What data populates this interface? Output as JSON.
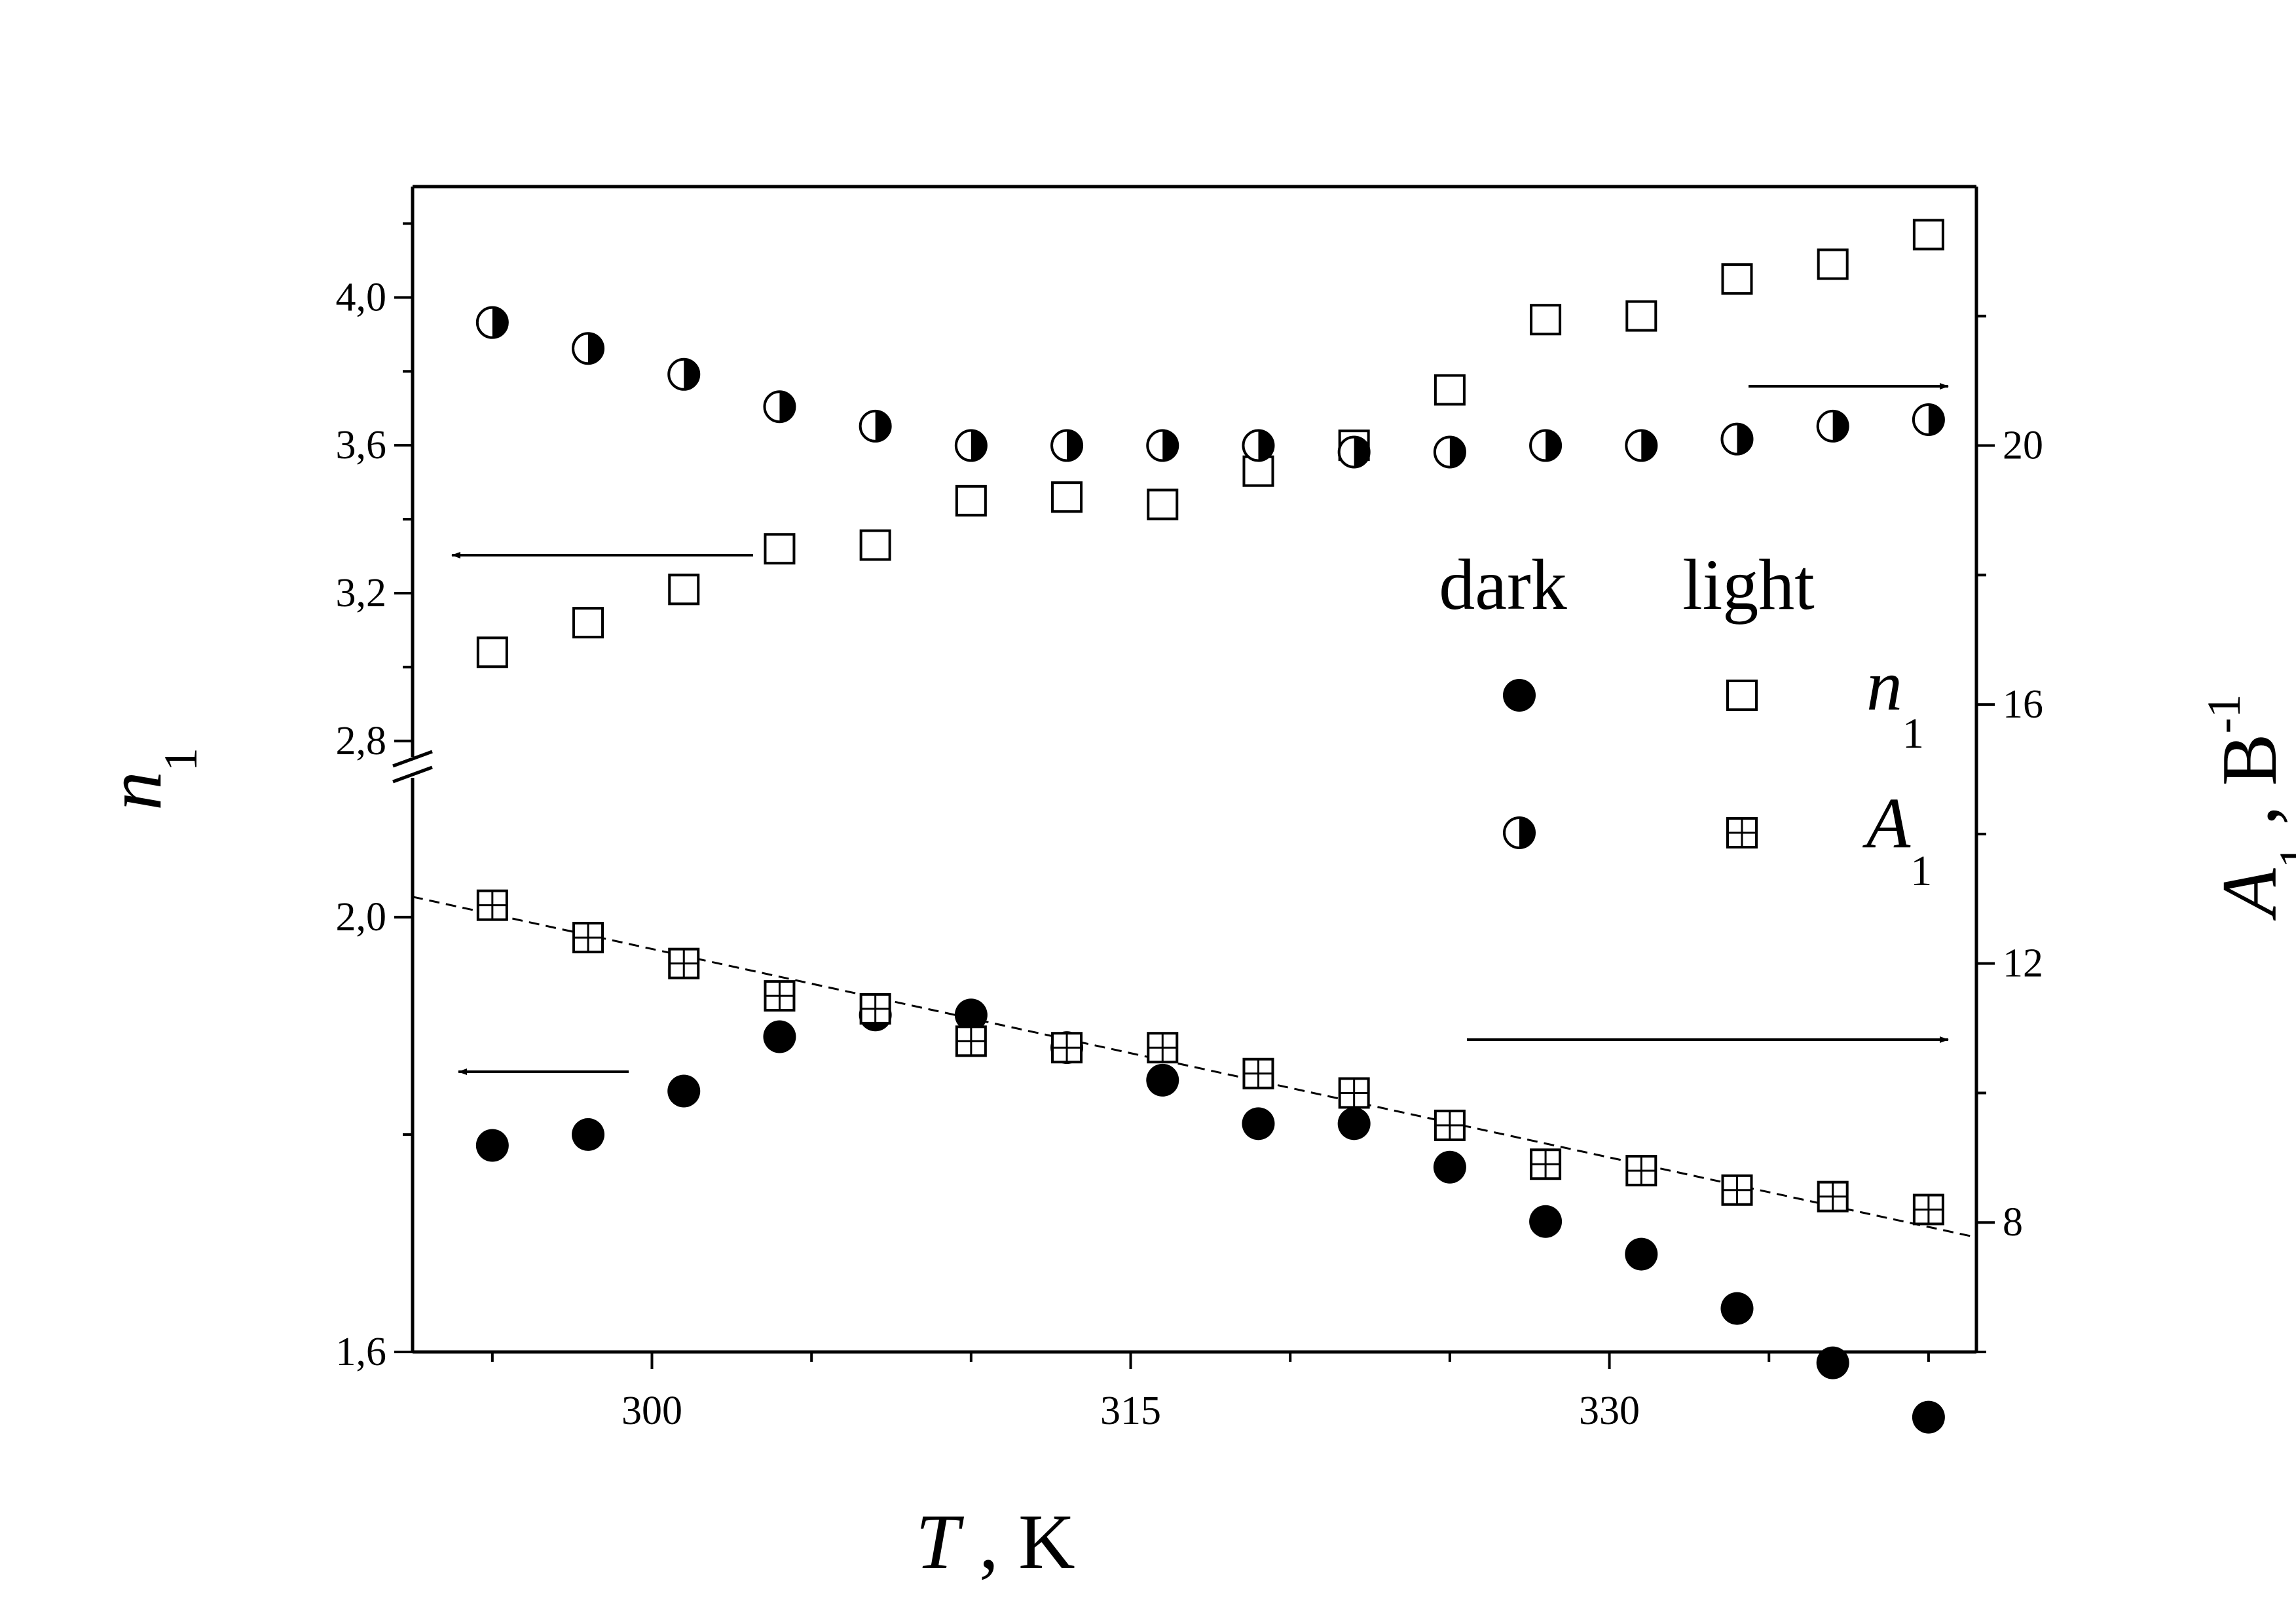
{
  "chart_data": {
    "type": "scatter",
    "title": "",
    "xlabel": {
      "symbol": "T",
      "unit": "K"
    },
    "y_left_label": {
      "symbol": "n",
      "subscript": "1"
    },
    "y_right_label": {
      "symbol": "A",
      "subscript": "1",
      "unit": "B",
      "superscript": "-1"
    },
    "x_axis": {
      "min": 292.5,
      "max": 341.5,
      "ticks": [
        300,
        315,
        330
      ],
      "tick_labels": [
        "300",
        "315",
        "330"
      ]
    },
    "y_left_upper": {
      "min": 2.75,
      "max": 4.3,
      "ticks": [
        2.8,
        3.2,
        3.6,
        4.0
      ],
      "tick_labels": [
        "2,8",
        "3,2",
        "3,6",
        "4,0"
      ]
    },
    "y_left_lower": {
      "min": 1.6,
      "max": 2.13,
      "ticks": [
        1.6,
        2.0
      ],
      "tick_labels": [
        "1,6",
        "2,0"
      ]
    },
    "y_right": {
      "min": 6.0,
      "max": 24.0,
      "ticks": [
        8,
        12,
        16,
        20
      ],
      "tick_labels": [
        "8",
        "12",
        "16",
        "20"
      ]
    },
    "legend": {
      "placement": "right-middle",
      "col_headers": [
        "dark",
        "light"
      ],
      "rows": [
        {
          "symbol": "n",
          "subscript": "1"
        },
        {
          "symbol": "A",
          "subscript": "1"
        }
      ]
    },
    "x": [
      295,
      298,
      301,
      304,
      307,
      310,
      313,
      316,
      319,
      322,
      325,
      328,
      331,
      334,
      337,
      340
    ],
    "series": [
      {
        "legend_row": 0,
        "legend_col": 0,
        "axis": "left-lower",
        "marker": "filled-circle",
        "values": [
          1.79,
          1.8,
          1.84,
          1.89,
          1.91,
          1.91,
          1.88,
          1.85,
          1.81,
          1.81,
          1.77,
          1.72,
          1.69,
          1.64,
          1.59,
          1.54
        ]
      },
      {
        "legend_row": 0,
        "legend_col": 1,
        "axis": "left-upper",
        "marker": "open-square",
        "values": [
          3.04,
          3.12,
          3.21,
          3.32,
          3.33,
          3.45,
          3.46,
          3.44,
          3.53,
          3.6,
          3.75,
          3.94,
          3.95,
          4.05,
          4.09,
          4.17
        ]
      },
      {
        "legend_row": 1,
        "legend_col": 0,
        "axis": "right",
        "marker": "half-filled-circle",
        "values": [
          21.9,
          21.5,
          21.1,
          20.6,
          20.3,
          20.0,
          20.0,
          20.0,
          20.0,
          19.9,
          19.9,
          20.0,
          20.0,
          20.1,
          20.3,
          20.4
        ]
      },
      {
        "legend_row": 1,
        "legend_col": 1,
        "axis": "right",
        "marker": "crossed-square",
        "values": [
          12.9,
          12.4,
          12.0,
          11.5,
          11.3,
          10.8,
          10.7,
          10.7,
          10.3,
          10.0,
          9.5,
          8.9,
          8.8,
          8.5,
          8.4,
          8.2
        ]
      }
    ],
    "fit_line": {
      "style": "dashed",
      "axis": "right",
      "x": [
        292.5,
        341.5
      ],
      "y": [
        13.03,
        7.77
      ]
    },
    "annotations": [
      {
        "type": "arrow",
        "direction": "right",
        "points_to": "right-axis",
        "series_ref": 2
      },
      {
        "type": "arrow",
        "direction": "left",
        "points_to": "left-axis",
        "series_ref": 1
      },
      {
        "type": "arrow",
        "direction": "right",
        "points_to": "right-axis",
        "series_ref": 3
      },
      {
        "type": "arrow",
        "direction": "left",
        "points_to": "left-axis",
        "series_ref": 0
      }
    ],
    "axis_break": {
      "axis": "left",
      "between": [
        2.13,
        2.75
      ]
    },
    "grid": false
  }
}
